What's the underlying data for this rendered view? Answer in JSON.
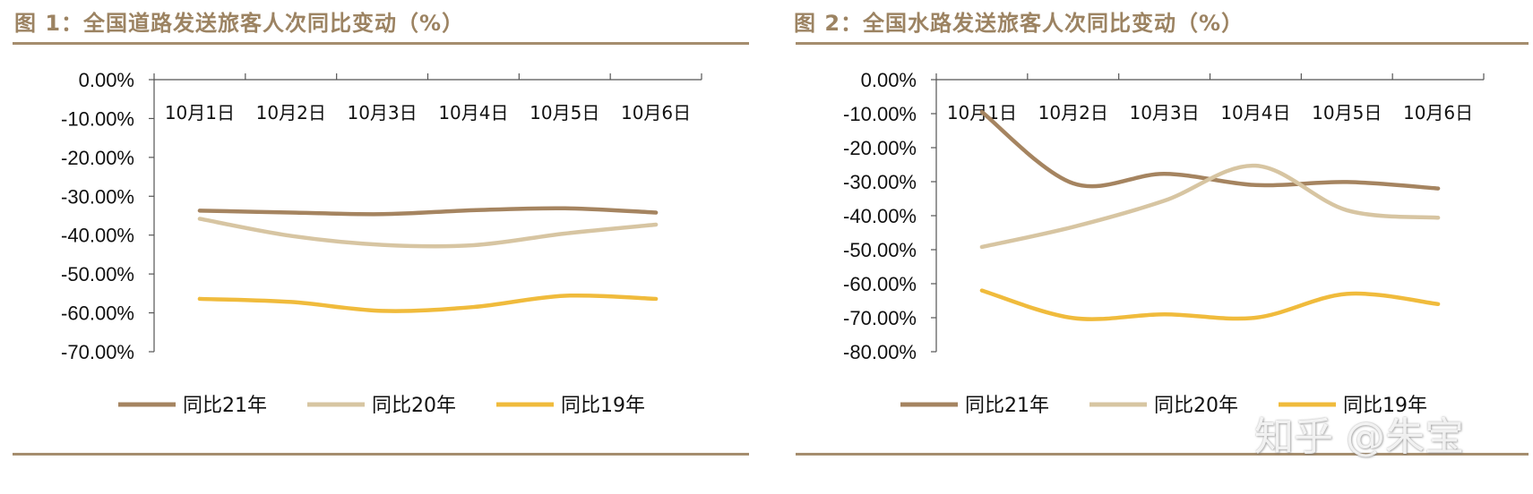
{
  "chart_data": [
    {
      "type": "line",
      "title": "图 1：全国道路发送旅客人次同比变动（%）",
      "categories": [
        "10月1日",
        "10月2日",
        "10月3日",
        "10月4日",
        "10月5日",
        "10月6日"
      ],
      "y_tick_labels": [
        "0.00%",
        "-10.00%",
        "-20.00%",
        "-30.00%",
        "-40.00%",
        "-50.00%",
        "-60.00%",
        "-70.00%"
      ],
      "ylim": [
        -70,
        0
      ],
      "grid": false,
      "legend_position": "bottom",
      "series": [
        {
          "name": "同比21年",
          "color": "#a58460",
          "values": [
            -33.7,
            -34.2,
            -34.6,
            -33.6,
            -33.1,
            -34.2
          ]
        },
        {
          "name": "同比20年",
          "color": "#d7c5a2",
          "values": [
            -35.8,
            -40.2,
            -42.5,
            -42.6,
            -39.6,
            -37.3
          ]
        },
        {
          "name": "同比19年",
          "color": "#f0bb3c",
          "values": [
            -56.4,
            -57.2,
            -59.5,
            -58.5,
            -55.6,
            -56.4
          ]
        }
      ]
    },
    {
      "type": "line",
      "title": "图 2：全国水路发送旅客人次同比变动（%）",
      "categories": [
        "10月1日",
        "10月2日",
        "10月3日",
        "10月4日",
        "10月5日",
        "10月6日"
      ],
      "y_tick_labels": [
        "0.00%",
        "-10.00%",
        "-20.00%",
        "-30.00%",
        "-40.00%",
        "-50.00%",
        "-60.00%",
        "-70.00%",
        "-80.00%"
      ],
      "ylim": [
        -80,
        0
      ],
      "grid": false,
      "legend_position": "bottom",
      "series": [
        {
          "name": "同比21年",
          "color": "#a58460",
          "values": [
            -9.5,
            -30.5,
            -27.7,
            -31.0,
            -30.1,
            -32.0
          ]
        },
        {
          "name": "同比20年",
          "color": "#d7c5a2",
          "values": [
            -49.2,
            -43.3,
            -35.6,
            -25.3,
            -38.4,
            -40.6
          ]
        },
        {
          "name": "同比19年",
          "color": "#f0bb3c",
          "values": [
            -62.0,
            -70.1,
            -69.0,
            -70.0,
            -63.0,
            -66.0
          ]
        }
      ]
    }
  ],
  "watermark": "知乎 @朱宝"
}
